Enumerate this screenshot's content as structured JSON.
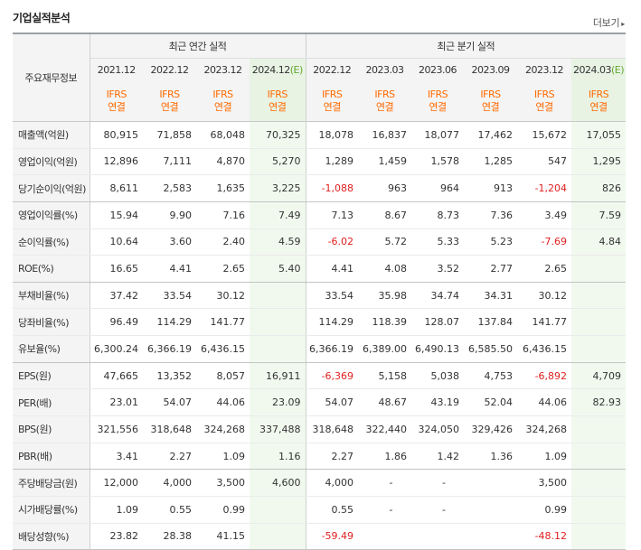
{
  "title": "기업실적분석",
  "more_label": "더보기",
  "table": {
    "row_header": "주요재무정보",
    "groups": [
      {
        "label": "최근 연간 실적"
      },
      {
        "label": "최근 분기 실적"
      }
    ],
    "periods": [
      "2021.12",
      "2022.12",
      "2023.12",
      "2024.12(E)",
      "2022.12",
      "2023.03",
      "2023.06",
      "2023.09",
      "2023.12",
      "2024.03(E)"
    ],
    "standard_top": "IFRS",
    "standard_bottom": "연결",
    "colors": {
      "negative": "#e02020",
      "ifrs": "#ff6a00",
      "estimate_bg": "#f1f9ee"
    },
    "rows": [
      {
        "label": "매출액(억원)",
        "values": [
          "80,915",
          "71,858",
          "68,048",
          "70,325",
          "18,078",
          "16,837",
          "18,077",
          "17,462",
          "15,672",
          "17,055"
        ]
      },
      {
        "label": "영업이익(억원)",
        "values": [
          "12,896",
          "7,111",
          "4,870",
          "5,270",
          "1,289",
          "1,459",
          "1,578",
          "1,285",
          "547",
          "1,295"
        ]
      },
      {
        "label": "당기순이익(억원)",
        "values": [
          "8,611",
          "2,583",
          "1,635",
          "3,225",
          "-1,088",
          "963",
          "964",
          "913",
          "-1,204",
          "826"
        ]
      },
      {
        "label": "영업이익률(%)",
        "values": [
          "15.94",
          "9.90",
          "7.16",
          "7.49",
          "7.13",
          "8.67",
          "8.73",
          "7.36",
          "3.49",
          "7.59"
        ]
      },
      {
        "label": "순이익률(%)",
        "values": [
          "10.64",
          "3.60",
          "2.40",
          "4.59",
          "-6.02",
          "5.72",
          "5.33",
          "5.23",
          "-7.69",
          "4.84"
        ]
      },
      {
        "label": "ROE(%)",
        "values": [
          "16.65",
          "4.41",
          "2.65",
          "5.40",
          "4.41",
          "4.08",
          "3.52",
          "2.77",
          "2.65",
          ""
        ]
      },
      {
        "label": "부채비율(%)",
        "values": [
          "37.42",
          "33.54",
          "30.12",
          "",
          "33.54",
          "35.98",
          "34.74",
          "34.31",
          "30.12",
          ""
        ]
      },
      {
        "label": "당좌비율(%)",
        "values": [
          "96.49",
          "114.29",
          "141.77",
          "",
          "114.29",
          "118.39",
          "128.07",
          "137.84",
          "141.77",
          ""
        ]
      },
      {
        "label": "유보율(%)",
        "values": [
          "6,300.24",
          "6,366.19",
          "6,436.15",
          "",
          "6,366.19",
          "6,389.00",
          "6,490.13",
          "6,585.50",
          "6,436.15",
          ""
        ]
      },
      {
        "label": "EPS(원)",
        "values": [
          "47,665",
          "13,352",
          "8,057",
          "16,911",
          "-6,369",
          "5,158",
          "5,038",
          "4,753",
          "-6,892",
          "4,709"
        ]
      },
      {
        "label": "PER(배)",
        "values": [
          "23.01",
          "54.07",
          "44.06",
          "23.09",
          "54.07",
          "48.67",
          "43.19",
          "52.04",
          "44.06",
          "82.93"
        ]
      },
      {
        "label": "BPS(원)",
        "values": [
          "321,556",
          "318,648",
          "324,268",
          "337,488",
          "318,648",
          "322,440",
          "324,050",
          "329,426",
          "324,268",
          ""
        ]
      },
      {
        "label": "PBR(배)",
        "values": [
          "3.41",
          "2.27",
          "1.09",
          "1.16",
          "2.27",
          "1.86",
          "1.42",
          "1.36",
          "1.09",
          ""
        ]
      },
      {
        "label": "주당배당금(원)",
        "values": [
          "12,000",
          "4,000",
          "3,500",
          "4,600",
          "4,000",
          "-",
          "-",
          "",
          "3,500",
          ""
        ]
      },
      {
        "label": "시가배당률(%)",
        "values": [
          "1.09",
          "0.55",
          "0.99",
          "",
          "0.55",
          "-",
          "-",
          "",
          "0.99",
          ""
        ]
      },
      {
        "label": "배당성향(%)",
        "values": [
          "23.82",
          "28.38",
          "41.15",
          "",
          "-59.49",
          "",
          "",
          "",
          "-48.12",
          ""
        ]
      }
    ]
  }
}
